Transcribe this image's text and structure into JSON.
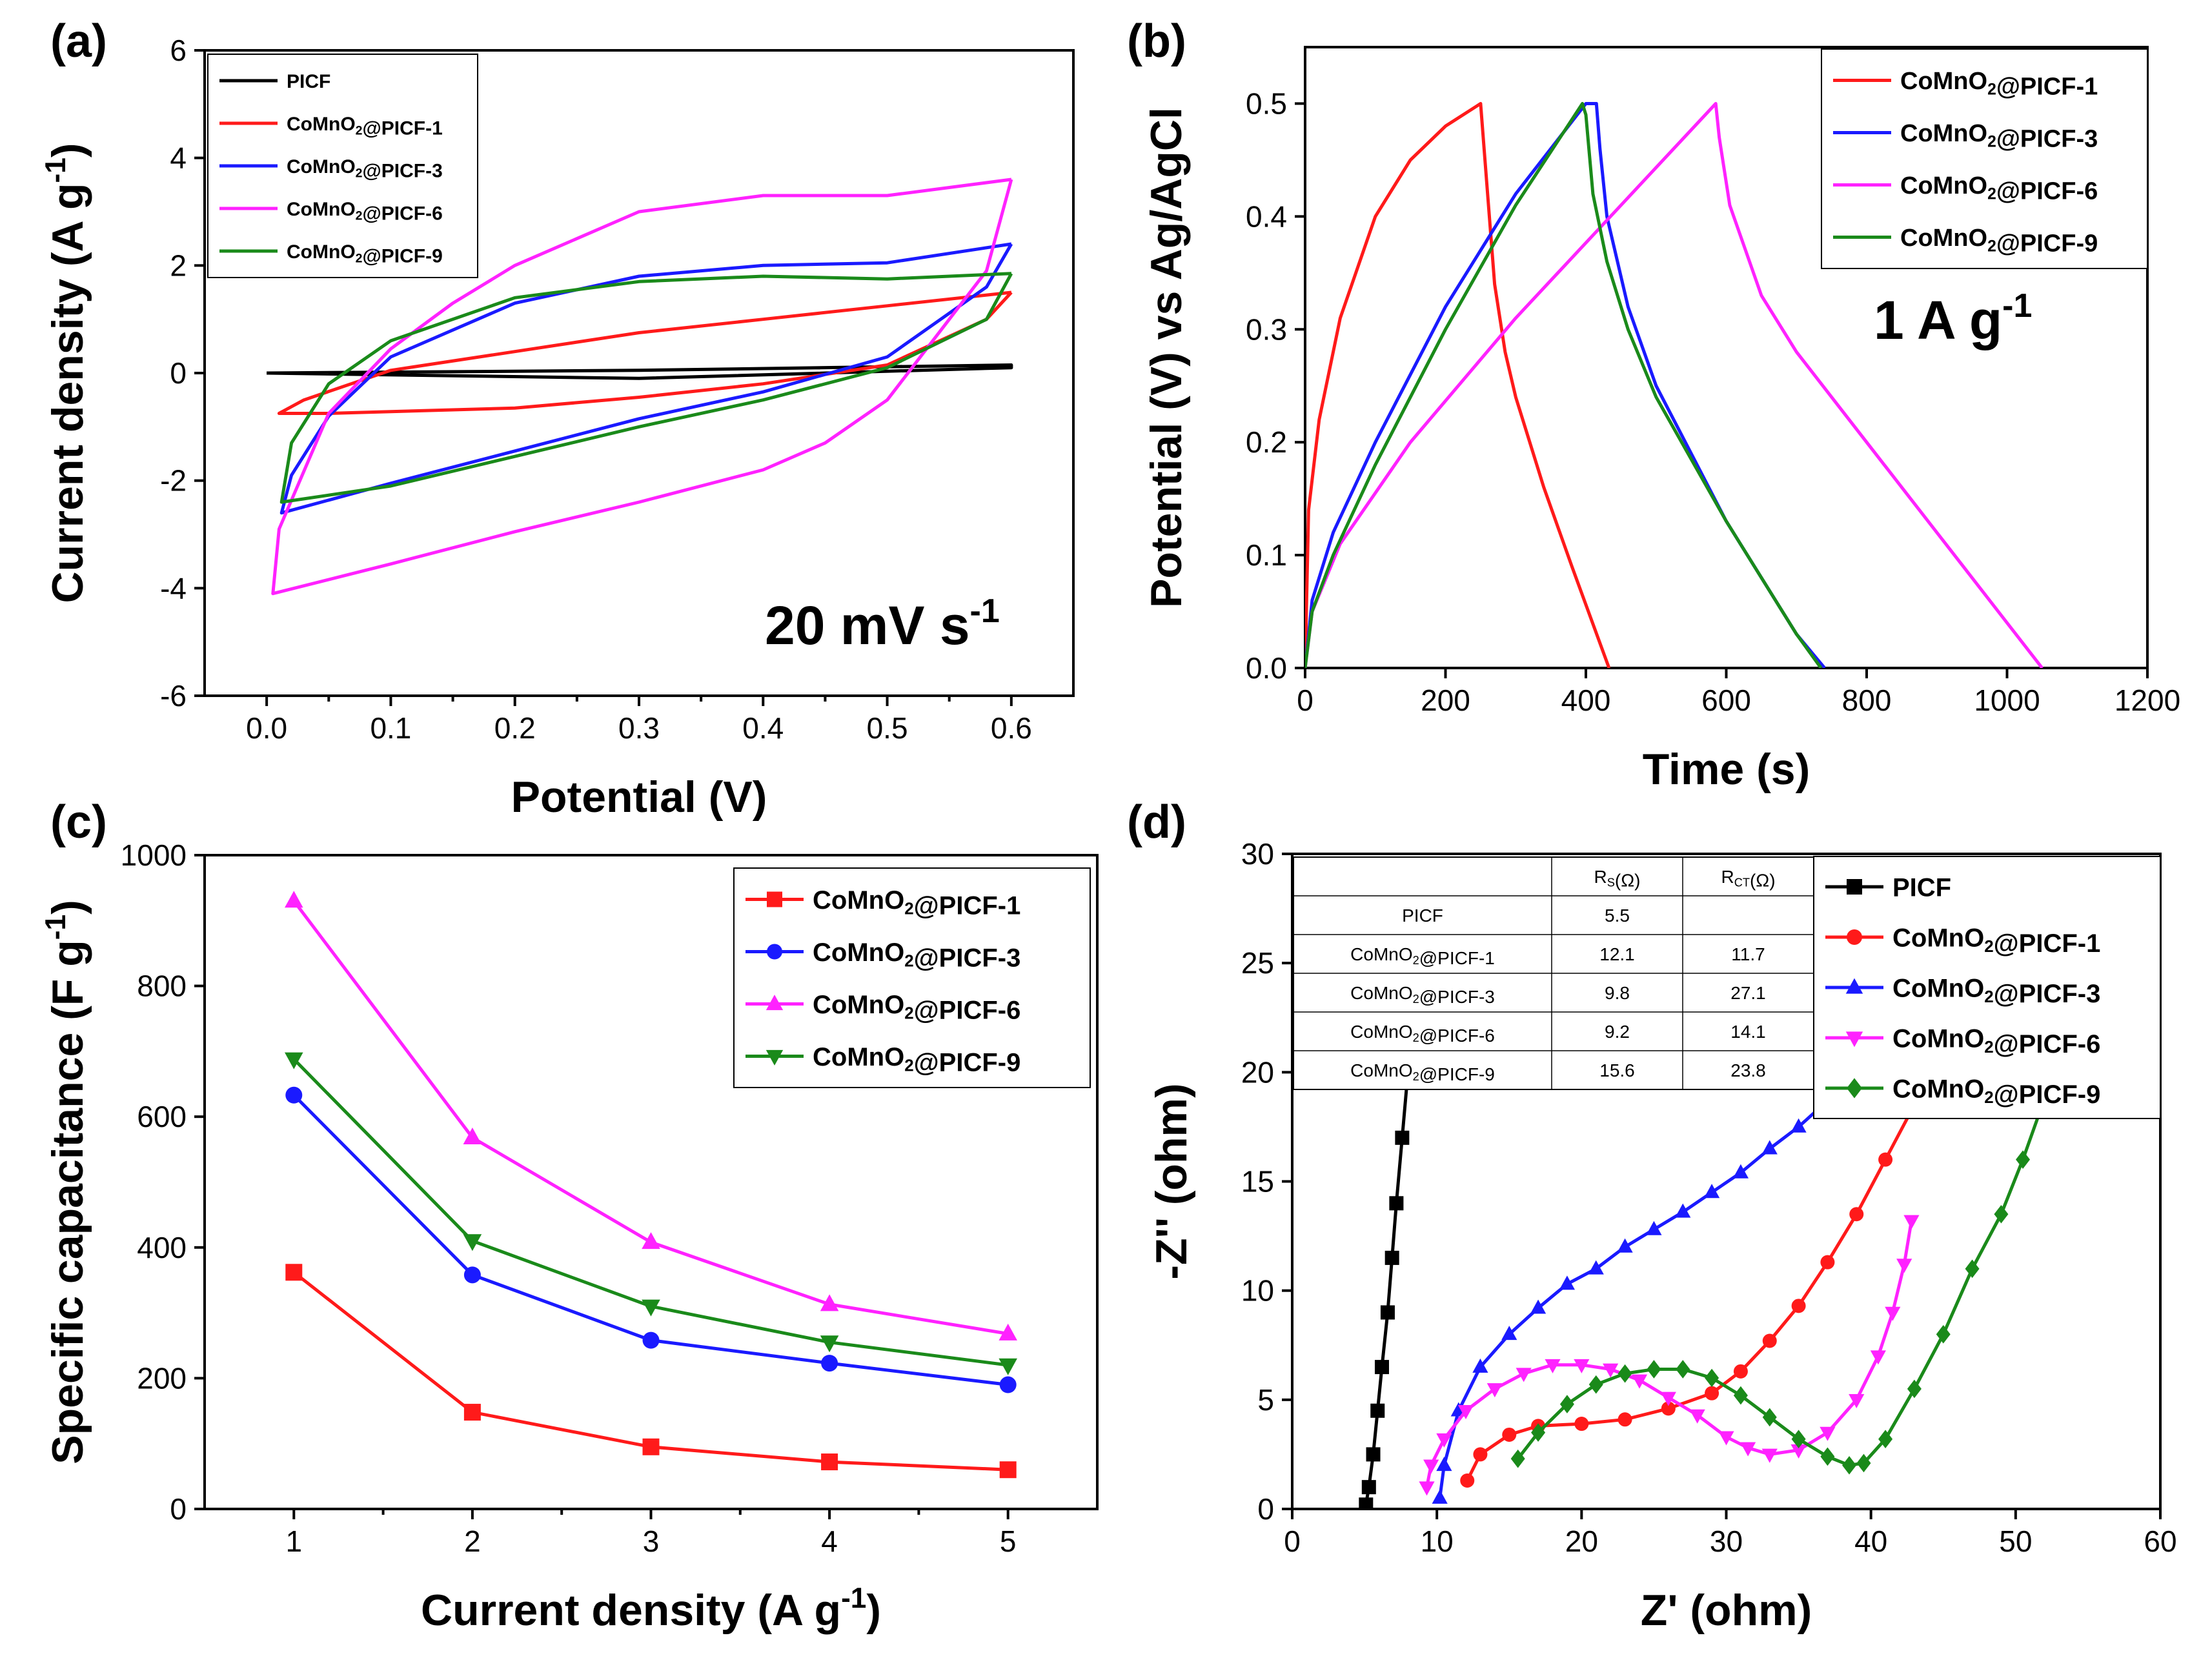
{
  "series_names": [
    "PICF",
    "CoMnO2@PICF-1",
    "CoMnO2@PICF-3",
    "CoMnO2@PICF-6",
    "CoMnO2@PICF-9"
  ],
  "colors": {
    "PICF": "#000000",
    "CoMnO2@PICF-1": "#ff1a1a",
    "CoMnO2@PICF-3": "#1a1aff",
    "CoMnO2@PICF-6": "#ff22ff",
    "CoMnO2@PICF-9": "#1a8a1a"
  },
  "chart_data": [
    {
      "panel": "(a)",
      "type": "line",
      "xlabel": "Potential (V)",
      "ylabel": "Current density (A g-1)",
      "xlim": [
        -0.05,
        0.65
      ],
      "ylim": [
        -6,
        6
      ],
      "xticks": [
        "0.0",
        "0.1",
        "0.2",
        "0.3",
        "0.4",
        "0.5",
        "0.6"
      ],
      "yticks": [
        "-6",
        "-4",
        "-2",
        "0",
        "2",
        "4",
        "6"
      ],
      "annotation": "20 mV s-1",
      "legend": [
        "PICF",
        "CoMnO2@PICF-1",
        "CoMnO2@PICF-3",
        "CoMnO2@PICF-6",
        "CoMnO2@PICF-9"
      ],
      "series": [
        {
          "name": "PICF",
          "x": [
            0.0,
            0.3,
            0.6,
            0.6,
            0.3,
            0.0
          ],
          "y": [
            0.0,
            0.05,
            0.15,
            0.1,
            -0.1,
            0.0
          ]
        },
        {
          "name": "CoMnO2@PICF-1",
          "x": [
            0.6,
            0.5,
            0.4,
            0.3,
            0.2,
            0.1,
            0.03,
            0.01,
            0.05,
            0.2,
            0.3,
            0.4,
            0.5,
            0.58,
            0.6
          ],
          "y": [
            1.5,
            1.25,
            1.0,
            0.75,
            0.4,
            0.05,
            -0.5,
            -0.75,
            -0.75,
            -0.65,
            -0.45,
            -0.2,
            0.15,
            1.0,
            1.5
          ]
        },
        {
          "name": "CoMnO2@PICF-3",
          "x": [
            0.6,
            0.5,
            0.4,
            0.3,
            0.2,
            0.1,
            0.05,
            0.02,
            0.012,
            0.1,
            0.2,
            0.3,
            0.4,
            0.5,
            0.58,
            0.6
          ],
          "y": [
            2.4,
            2.05,
            2.0,
            1.8,
            1.3,
            0.3,
            -0.8,
            -1.9,
            -2.6,
            -2.05,
            -1.45,
            -0.85,
            -0.35,
            0.3,
            1.6,
            2.4
          ]
        },
        {
          "name": "CoMnO2@PICF-6",
          "x": [
            0.6,
            0.5,
            0.4,
            0.3,
            0.2,
            0.15,
            0.1,
            0.05,
            0.01,
            0.005,
            0.1,
            0.2,
            0.3,
            0.4,
            0.45,
            0.5,
            0.58,
            0.6
          ],
          "y": [
            3.6,
            3.3,
            3.3,
            3.0,
            2.0,
            1.3,
            0.45,
            -0.75,
            -2.9,
            -4.1,
            -3.55,
            -2.95,
            -2.4,
            -1.8,
            -1.3,
            -0.5,
            1.9,
            3.6
          ]
        },
        {
          "name": "CoMnO2@PICF-9",
          "x": [
            0.6,
            0.5,
            0.4,
            0.3,
            0.2,
            0.1,
            0.05,
            0.02,
            0.012,
            0.1,
            0.2,
            0.3,
            0.4,
            0.5,
            0.58,
            0.6
          ],
          "y": [
            1.85,
            1.75,
            1.8,
            1.7,
            1.4,
            0.6,
            -0.2,
            -1.3,
            -2.4,
            -2.1,
            -1.55,
            -1.0,
            -0.5,
            0.1,
            1.0,
            1.85
          ]
        }
      ]
    },
    {
      "panel": "(b)",
      "type": "line",
      "xlabel": "Time (s)",
      "ylabel": "Potential (V) vs Ag/AgCl",
      "xlim": [
        0,
        1200
      ],
      "ylim": [
        0,
        0.55
      ],
      "xticks": [
        "0",
        "200",
        "400",
        "600",
        "800",
        "1000",
        "1200"
      ],
      "yticks": [
        "0.0",
        "0.1",
        "0.2",
        "0.3",
        "0.4",
        "0.5"
      ],
      "annotation": "1 A g-1",
      "legend": [
        "CoMnO2@PICF-1",
        "CoMnO2@PICF-3",
        "CoMnO2@PICF-6",
        "CoMnO2@PICF-9"
      ],
      "series": [
        {
          "name": "CoMnO2@PICF-1",
          "x": [
            0,
            5,
            20,
            50,
            100,
            150,
            200,
            250,
            255,
            270,
            285,
            300,
            340,
            380,
            433
          ],
          "y": [
            0,
            0.14,
            0.22,
            0.31,
            0.4,
            0.45,
            0.48,
            0.5,
            0.46,
            0.34,
            0.28,
            0.24,
            0.16,
            0.09,
            0.0
          ]
        },
        {
          "name": "CoMnO2@PICF-3",
          "x": [
            0,
            10,
            40,
            100,
            200,
            300,
            400,
            415,
            420,
            430,
            460,
            500,
            600,
            700,
            740
          ],
          "y": [
            0,
            0.06,
            0.12,
            0.2,
            0.32,
            0.42,
            0.5,
            0.5,
            0.46,
            0.4,
            0.32,
            0.25,
            0.13,
            0.03,
            0.0
          ]
        },
        {
          "name": "CoMnO2@PICF-6",
          "x": [
            0,
            10,
            50,
            150,
            300,
            450,
            585,
            590,
            605,
            650,
            700,
            800,
            900,
            1000,
            1050
          ],
          "y": [
            0,
            0.05,
            0.11,
            0.2,
            0.31,
            0.41,
            0.5,
            0.47,
            0.41,
            0.33,
            0.28,
            0.2,
            0.12,
            0.04,
            0.0
          ]
        },
        {
          "name": "CoMnO2@PICF-9",
          "x": [
            0,
            10,
            40,
            100,
            200,
            300,
            395,
            400,
            410,
            430,
            460,
            500,
            600,
            700,
            735
          ],
          "y": [
            0,
            0.05,
            0.1,
            0.18,
            0.3,
            0.41,
            0.5,
            0.49,
            0.42,
            0.36,
            0.3,
            0.24,
            0.13,
            0.03,
            0.0
          ]
        }
      ]
    },
    {
      "panel": "(c)",
      "type": "line",
      "xlabel": "Current density (A g-1)",
      "ylabel": "Specific capacitance (F g-1)",
      "xlim": [
        0.5,
        5.5
      ],
      "ylim": [
        0,
        1000
      ],
      "xticks": [
        "1",
        "2",
        "3",
        "4",
        "5"
      ],
      "yticks": [
        "0",
        "200",
        "400",
        "600",
        "800",
        "1000"
      ],
      "legend": [
        "CoMnO2@PICF-1",
        "CoMnO2@PICF-3",
        "CoMnO2@PICF-6",
        "CoMnO2@PICF-9"
      ],
      "x": [
        1,
        2,
        3,
        4,
        5
      ],
      "series": [
        {
          "name": "CoMnO2@PICF-1",
          "marker": "square",
          "values": [
            362,
            148,
            95,
            72,
            60
          ]
        },
        {
          "name": "CoMnO2@PICF-3",
          "marker": "circle",
          "values": [
            633,
            358,
            258,
            223,
            190
          ]
        },
        {
          "name": "CoMnO2@PICF-6",
          "marker": "triangle-up",
          "values": [
            930,
            568,
            408,
            313,
            268
          ]
        },
        {
          "name": "CoMnO2@PICF-9",
          "marker": "triangle-down",
          "values": [
            688,
            410,
            310,
            255,
            220
          ]
        }
      ]
    },
    {
      "panel": "(d)",
      "type": "scatter",
      "xlabel": "Z' (ohm)",
      "ylabel": "-Z'' (ohm)",
      "xlim": [
        0,
        60
      ],
      "ylim": [
        0,
        30
      ],
      "xticks": [
        "0",
        "10",
        "20",
        "30",
        "40",
        "50",
        "60"
      ],
      "yticks": [
        "0",
        "5",
        "10",
        "15",
        "20",
        "25",
        "30"
      ],
      "legend": [
        "PICF",
        "CoMnO2@PICF-1",
        "CoMnO2@PICF-3",
        "CoMnO2@PICF-6",
        "CoMnO2@PICF-9"
      ],
      "series": [
        {
          "name": "PICF",
          "marker": "square",
          "x": [
            5.1,
            5.3,
            5.6,
            5.9,
            6.2,
            6.6,
            6.9,
            7.2,
            7.6,
            8.0
          ],
          "y": [
            0.2,
            1.0,
            2.5,
            4.5,
            6.5,
            9,
            11.5,
            14,
            17,
            20
          ]
        },
        {
          "name": "CoMnO2@PICF-1",
          "marker": "circle",
          "x": [
            12.1,
            13,
            15,
            17,
            20,
            23,
            26,
            29,
            31,
            33,
            35,
            37,
            39,
            41,
            43,
            45
          ],
          "y": [
            1.3,
            2.5,
            3.4,
            3.8,
            3.9,
            4.1,
            4.6,
            5.3,
            6.3,
            7.7,
            9.3,
            11.3,
            13.5,
            16,
            18.5,
            20.5
          ]
        },
        {
          "name": "CoMnO2@PICF-3",
          "marker": "triangle-up",
          "x": [
            10.2,
            10.5,
            11.5,
            13,
            15,
            17,
            19,
            21,
            23,
            25,
            27,
            29,
            31,
            33,
            35,
            37
          ],
          "y": [
            0.5,
            2,
            4.5,
            6.5,
            8,
            9.2,
            10.3,
            11,
            12,
            12.8,
            13.6,
            14.5,
            15.4,
            16.5,
            17.5,
            18.7
          ]
        },
        {
          "name": "CoMnO2@PICF-6",
          "marker": "triangle-down",
          "x": [
            9.3,
            9.6,
            10.5,
            12,
            14,
            16,
            18,
            20,
            22,
            24,
            26,
            28,
            30,
            31.5,
            33,
            35,
            37,
            39,
            40.5,
            41.5,
            42.3,
            42.8
          ],
          "y": [
            1.0,
            2.0,
            3.2,
            4.5,
            5.5,
            6.2,
            6.6,
            6.6,
            6.4,
            5.9,
            5.1,
            4.3,
            3.3,
            2.8,
            2.5,
            2.7,
            3.5,
            5,
            7,
            9,
            11.2,
            13.2
          ]
        },
        {
          "name": "CoMnO2@PICF-9",
          "marker": "diamond",
          "x": [
            15.6,
            17,
            19,
            21,
            23,
            25,
            27,
            29,
            31,
            33,
            35,
            37,
            38.5,
            39.5,
            41,
            43,
            45,
            47,
            49,
            50.5,
            52
          ],
          "y": [
            2.3,
            3.5,
            4.8,
            5.7,
            6.2,
            6.4,
            6.4,
            6.0,
            5.2,
            4.2,
            3.2,
            2.4,
            2.0,
            2.1,
            3.2,
            5.5,
            8,
            11,
            13.5,
            16,
            18.8
          ]
        }
      ],
      "inset_table": {
        "headers": [
          "",
          "RS(Ω)",
          "RCT(Ω)"
        ],
        "rows": [
          [
            "PICF",
            "5.5",
            ""
          ],
          [
            "CoMnO2@PICF-1",
            "12.1",
            "11.7"
          ],
          [
            "CoMnO2@PICF-3",
            "9.8",
            "27.1"
          ],
          [
            "CoMnO2@PICF-6",
            "9.2",
            "14.1"
          ],
          [
            "CoMnO2@PICF-9",
            "15.6",
            "23.8"
          ]
        ]
      }
    }
  ]
}
